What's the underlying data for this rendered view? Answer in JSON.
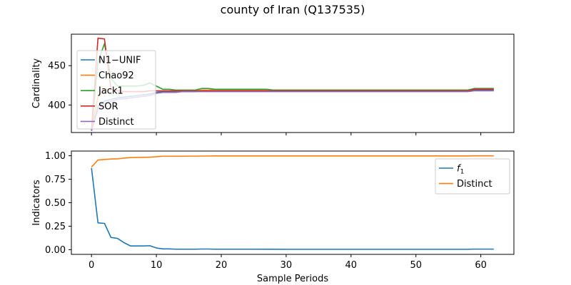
{
  "title": "county of Iran (Q137535)",
  "colors": {
    "blue": "#1f77b4",
    "orange": "#ff7f0e",
    "green": "#2ca02c",
    "red": "#d62728",
    "purple": "#9467bd"
  },
  "chart_data": [
    {
      "type": "line",
      "title": "",
      "xlabel": "",
      "ylabel": "Cardinality",
      "xlim": [
        -3.1,
        65.1
      ],
      "ylim": [
        365,
        490
      ],
      "xticks": [
        0,
        10,
        20,
        30,
        40,
        50,
        60
      ],
      "xtick_labels_visible": false,
      "yticks": [
        400,
        450
      ],
      "yticklabels": [
        "400",
        "450"
      ],
      "grid": false,
      "legend_placement": "upper-left",
      "series": [
        {
          "name": "N1−UNIF",
          "color": "#1f77b4",
          "x": [
            0,
            1,
            2,
            3,
            4,
            5,
            6,
            7,
            8,
            9,
            10,
            11,
            12,
            13,
            14,
            15,
            16,
            17,
            18,
            19,
            20,
            25,
            30,
            35,
            40,
            45,
            50,
            55,
            58,
            59,
            60,
            61,
            62
          ],
          "y": [
            368,
            398,
            405,
            407,
            409,
            410,
            411,
            412,
            413,
            414,
            416,
            417,
            417,
            417,
            417,
            417,
            417,
            418,
            418,
            418,
            418,
            418,
            418,
            418,
            418,
            418,
            418,
            418,
            418,
            419,
            419,
            419,
            419
          ]
        },
        {
          "name": "Chao92",
          "color": "#ff7f0e",
          "x": [
            0,
            1,
            2,
            3,
            4,
            5,
            6,
            7,
            8,
            9,
            10,
            11,
            12,
            13,
            14,
            15,
            16,
            17,
            18,
            19,
            20,
            25,
            30,
            35,
            40,
            45,
            50,
            55,
            58,
            59,
            60,
            61,
            62
          ],
          "y": [
            370,
            410,
            420,
            420,
            418,
            417,
            417,
            417,
            417,
            418,
            418,
            418,
            418,
            418,
            418,
            418,
            418,
            419,
            419,
            419,
            419,
            419,
            419,
            419,
            419,
            419,
            419,
            419,
            419,
            420,
            420,
            420,
            420
          ]
        },
        {
          "name": "Jack1",
          "color": "#2ca02c",
          "x": [
            0,
            1,
            2,
            3,
            4,
            5,
            6,
            7,
            8,
            9,
            10,
            11,
            12,
            13,
            14,
            15,
            16,
            17,
            18,
            19,
            20,
            25,
            27,
            28,
            30,
            35,
            40,
            45,
            50,
            55,
            58,
            59,
            60,
            61,
            62
          ],
          "y": [
            368,
            455,
            478,
            434,
            424,
            424,
            424,
            424,
            425,
            428,
            424,
            420,
            420,
            419,
            419,
            419,
            419,
            421,
            421,
            420,
            420,
            420,
            420,
            419,
            419,
            419,
            419,
            419,
            419,
            419,
            419,
            421,
            421,
            421,
            421
          ]
        },
        {
          "name": "SOR",
          "color": "#d62728",
          "x": [
            0,
            1,
            2,
            3,
            4,
            5,
            6,
            7,
            8,
            9,
            10,
            11,
            12,
            13,
            14,
            15,
            16,
            17,
            18,
            19,
            20,
            25,
            30,
            35,
            40,
            45,
            50,
            55,
            58,
            59,
            60,
            61,
            62
          ],
          "y": [
            368,
            485,
            484,
            420,
            418,
            417,
            417,
            417,
            417,
            418,
            418,
            418,
            418,
            418,
            418,
            418,
            418,
            418,
            418,
            418,
            418,
            418,
            418,
            418,
            418,
            418,
            418,
            418,
            418,
            420,
            420,
            420,
            420
          ]
        },
        {
          "name": "Distinct",
          "color": "#9467bd",
          "x": [
            0,
            1,
            2,
            3,
            4,
            5,
            6,
            7,
            8,
            9,
            10,
            11,
            12,
            13,
            14,
            15,
            16,
            17,
            18,
            19,
            20,
            25,
            30,
            35,
            40,
            45,
            50,
            55,
            58,
            59,
            60,
            61,
            62
          ],
          "y": [
            367,
            395,
            402,
            405,
            407,
            408,
            409,
            410,
            411,
            412,
            415,
            416,
            416,
            416,
            417,
            417,
            417,
            417,
            417,
            417,
            417,
            417,
            417,
            417,
            417,
            417,
            417,
            417,
            417,
            418,
            418,
            418,
            418
          ]
        }
      ]
    },
    {
      "type": "line",
      "title": "",
      "xlabel": "Sample Periods",
      "ylabel": "Indicators",
      "xlim": [
        -3.1,
        65.1
      ],
      "ylim": [
        -0.05,
        1.05
      ],
      "xticks": [
        0,
        10,
        20,
        30,
        40,
        50,
        60
      ],
      "xticklabels": [
        "0",
        "10",
        "20",
        "30",
        "40",
        "50",
        "60"
      ],
      "yticks": [
        0.0,
        0.25,
        0.5,
        0.75,
        1.0
      ],
      "yticklabels": [
        "0.00",
        "0.25",
        "0.50",
        "0.75",
        "1.00"
      ],
      "grid": false,
      "legend_placement": "upper-right",
      "series": [
        {
          "name": "f",
          "name_subscript": "1",
          "color": "#1f77b4",
          "x": [
            0,
            1,
            2,
            3,
            4,
            5,
            6,
            7,
            8,
            9,
            10,
            11,
            12,
            13,
            14,
            15,
            16,
            17,
            18,
            19,
            20,
            25,
            30,
            35,
            40,
            45,
            50,
            55,
            58,
            59,
            60,
            61,
            62
          ],
          "y": [
            0.87,
            0.285,
            0.28,
            0.13,
            0.12,
            0.075,
            0.04,
            0.04,
            0.04,
            0.042,
            0.018,
            0.008,
            0.008,
            0.005,
            0.005,
            0.005,
            0.005,
            0.007,
            0.007,
            0.005,
            0.005,
            0.005,
            0.004,
            0.004,
            0.004,
            0.004,
            0.004,
            0.004,
            0.004,
            0.006,
            0.006,
            0.006,
            0.006
          ]
        },
        {
          "name": "Distinct",
          "name_subscript": "",
          "color": "#ff7f0e",
          "x": [
            0,
            1,
            2,
            3,
            4,
            5,
            6,
            7,
            8,
            9,
            10,
            11,
            12,
            13,
            14,
            15,
            16,
            17,
            18,
            19,
            20,
            25,
            30,
            35,
            40,
            45,
            50,
            55,
            58,
            59,
            60,
            61,
            62
          ],
          "y": [
            0.88,
            0.955,
            0.96,
            0.965,
            0.967,
            0.975,
            0.98,
            0.982,
            0.983,
            0.985,
            0.99,
            0.995,
            0.995,
            0.995,
            0.995,
            0.996,
            0.996,
            0.997,
            0.997,
            0.998,
            0.998,
            0.998,
            0.998,
            0.998,
            0.998,
            0.998,
            0.998,
            0.998,
            0.998,
            0.999,
            0.999,
            0.999,
            0.999
          ]
        }
      ]
    }
  ]
}
